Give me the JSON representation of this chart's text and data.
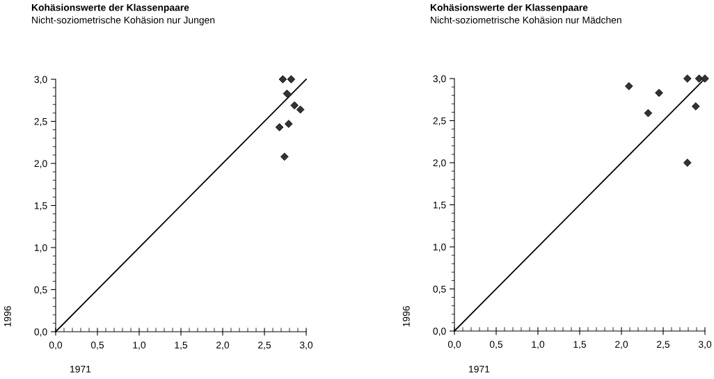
{
  "chart_data": [
    {
      "type": "scatter",
      "title": "Kohäsionswerte der Klassenpaare",
      "subtitle": "Nicht-soziometrische Kohäsion nur Jungen",
      "xlabel": "1971",
      "ylabel": "1996",
      "marker": "diamond",
      "grid": false,
      "xlim": [
        0,
        3
      ],
      "ylim": [
        0,
        3
      ],
      "xticks": [
        {
          "value": 0,
          "label": "0,0"
        },
        {
          "value": 0.5,
          "label": "0,5"
        },
        {
          "value": 1,
          "label": "1,0"
        },
        {
          "value": 1.5,
          "label": "1,5"
        },
        {
          "value": 2,
          "label": "2,0"
        },
        {
          "value": 2.5,
          "label": "2,5"
        },
        {
          "value": 3,
          "label": "3,0"
        }
      ],
      "yticks": [
        {
          "value": 0,
          "label": "0,0"
        },
        {
          "value": 0.5,
          "label": "0,5"
        },
        {
          "value": 1,
          "label": "1,0"
        },
        {
          "value": 1.5,
          "label": "1,5"
        },
        {
          "value": 2,
          "label": "2,0"
        },
        {
          "value": 2.5,
          "label": "2,5"
        },
        {
          "value": 3,
          "label": "3,0"
        }
      ],
      "series": [
        {
          "color": "#333333",
          "x": [
            2.72,
            2.82,
            2.77,
            2.86,
            2.93,
            2.68,
            2.79,
            2.74
          ],
          "values": [
            3.0,
            3.0,
            2.83,
            2.69,
            2.64,
            2.43,
            2.47,
            2.08
          ]
        },
        {
          "type": "line",
          "color": "#000000",
          "marker": "none",
          "x": [
            0,
            3
          ],
          "values": [
            0,
            3
          ]
        }
      ]
    },
    {
      "type": "scatter",
      "title": "Kohäsionswerte der Klassenpaare",
      "subtitle": "Nicht-soziometrische Kohäsion nur Mädchen",
      "xlabel": "1971",
      "ylabel": "1996",
      "marker": "diamond",
      "grid": false,
      "xlim": [
        0,
        3
      ],
      "ylim": [
        0,
        3
      ],
      "xticks": [
        {
          "value": 0,
          "label": "0,0"
        },
        {
          "value": 0.5,
          "label": "0,5"
        },
        {
          "value": 1,
          "label": "1,0"
        },
        {
          "value": 1.5,
          "label": "1,5"
        },
        {
          "value": 2,
          "label": "2,0"
        },
        {
          "value": 2.5,
          "label": "2,5"
        },
        {
          "value": 3,
          "label": "3,0"
        }
      ],
      "yticks": [
        {
          "value": 0,
          "label": "0,0"
        },
        {
          "value": 0.5,
          "label": "0,5"
        },
        {
          "value": 1,
          "label": "1,0"
        },
        {
          "value": 1.5,
          "label": "1,5"
        },
        {
          "value": 2,
          "label": "2,0"
        },
        {
          "value": 2.5,
          "label": "2,5"
        },
        {
          "value": 3,
          "label": "3,0"
        }
      ],
      "series": [
        {
          "color": "#333333",
          "x": [
            2.09,
            2.32,
            2.45,
            2.79,
            2.93,
            3.0,
            2.89,
            2.79
          ],
          "values": [
            2.91,
            2.59,
            2.83,
            3.0,
            3.0,
            3.0,
            2.67,
            2.0
          ]
        },
        {
          "type": "line",
          "color": "#000000",
          "marker": "none",
          "x": [
            0,
            3
          ],
          "values": [
            0,
            3
          ]
        }
      ]
    }
  ]
}
